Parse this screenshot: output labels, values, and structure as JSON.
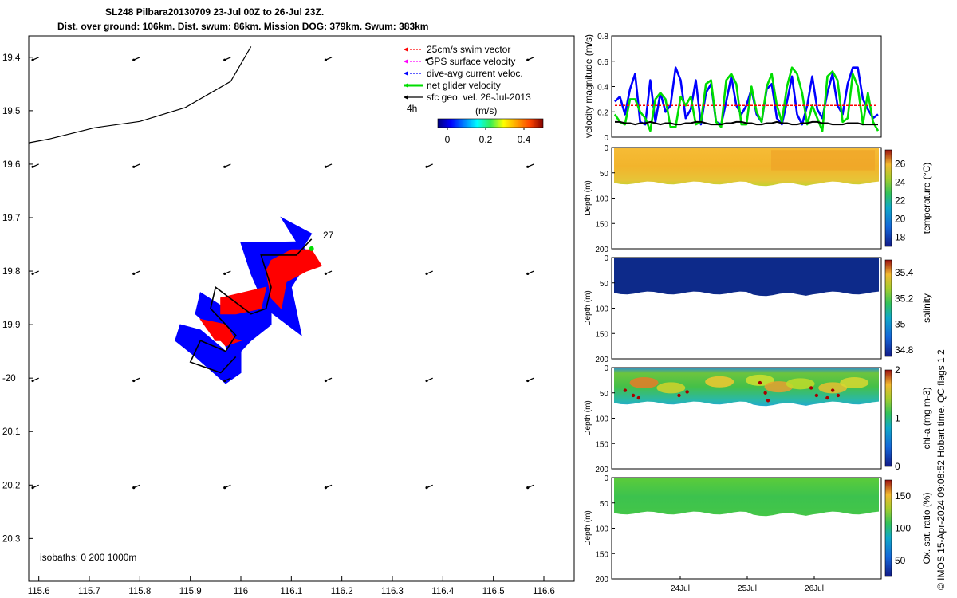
{
  "title": {
    "line1": "SL248 Pilbara20130709 23-Jul 00Z to 26-Jul 23Z.",
    "line2": "Dist. over ground: 106km. Dist. swum: 86km. Mission DOG: 379km. Swum: 383km"
  },
  "colors": {
    "swim_vector": "#ff0000",
    "gps_velocity": "#ff00ff",
    "current": "#0000ff",
    "net_glider": "#00dd00",
    "geo_vel": "#000000"
  },
  "chart_data": [
    {
      "type": "map",
      "xlim": [
        115.58,
        116.66
      ],
      "ylim": [
        -20.38,
        -19.36
      ],
      "xticks": [
        115.6,
        115.7,
        115.8,
        115.9,
        116.0,
        116.1,
        116.2,
        116.3,
        116.4,
        116.5,
        116.6
      ],
      "xtick_labels": [
        "115.6",
        "115.7",
        "115.8",
        "115.9",
        "116",
        "116.1",
        "116.2",
        "116.3",
        "116.4",
        "116.5",
        "116.6"
      ],
      "yticks": [
        -19.4,
        -19.5,
        -19.6,
        -19.7,
        -19.8,
        -19.9,
        -20.0,
        -20.1,
        -20.2,
        -20.3
      ],
      "ytick_labels": [
        "19.4",
        "19.5",
        "19.6",
        "19.7",
        "19.8",
        "19.9",
        "-20",
        "20.1",
        "20.2",
        "20.3"
      ],
      "legend": [
        {
          "label": "25cm/s swim vector",
          "color": "#ff0000",
          "style": "dotted"
        },
        {
          "label": "GPS surface velocity",
          "color": "#ff00ff",
          "style": "dotted"
        },
        {
          "label": "dive-avg current veloc.",
          "color": "#0000ff",
          "style": "dotted"
        },
        {
          "label": "net glider velocity",
          "color": "#00dd00",
          "style": "thick"
        },
        {
          "label": "sfc geo. vel. 26-Jul-2013",
          "color": "#000000",
          "style": "solid"
        }
      ],
      "time_step_label": "4h",
      "colorbar": {
        "unit": "(m/s)",
        "ticks": [
          "0",
          "0.2",
          "0.4"
        ],
        "range": [
          -0.05,
          0.5
        ]
      },
      "isobath_label": "isobaths: 0   200  1000m",
      "annotation": "27",
      "coastline": [
        [
          115.58,
          -19.56
        ],
        [
          115.62,
          -19.553
        ],
        [
          115.71,
          -19.532
        ],
        [
          115.8,
          -19.52
        ],
        [
          115.89,
          -19.494
        ],
        [
          115.98,
          -19.445
        ],
        [
          116.02,
          -19.38
        ]
      ],
      "glider_track": [
        [
          116.14,
          -19.74
        ],
        [
          116.11,
          -19.77
        ],
        [
          116.04,
          -19.77
        ],
        [
          116.06,
          -19.83
        ],
        [
          116.05,
          -19.87
        ],
        [
          116.02,
          -19.88
        ],
        [
          115.95,
          -19.83
        ],
        [
          115.94,
          -19.87
        ],
        [
          115.99,
          -19.92
        ],
        [
          115.97,
          -19.95
        ],
        [
          115.92,
          -19.93
        ],
        [
          115.9,
          -19.97
        ],
        [
          115.96,
          -19.99
        ],
        [
          115.99,
          -19.96
        ]
      ],
      "current_polygons": [
        [
          [
            116.11,
            -19.745
          ],
          [
            116.0,
            -19.747
          ],
          [
            116.02,
            -19.805
          ],
          [
            116.05,
            -19.87
          ],
          [
            116.12,
            -19.92
          ],
          [
            116.1,
            -19.83
          ],
          [
            116.14,
            -19.77
          ]
        ],
        [
          [
            116.06,
            -19.85
          ],
          [
            115.95,
            -19.88
          ],
          [
            115.98,
            -19.97
          ],
          [
            116.02,
            -19.93
          ],
          [
            116.06,
            -19.9
          ]
        ],
        [
          [
            116.08,
            -19.7
          ],
          [
            116.12,
            -19.76
          ],
          [
            116.14,
            -19.73
          ]
        ],
        [
          [
            115.88,
            -19.9
          ],
          [
            115.92,
            -19.91
          ],
          [
            115.97,
            -19.95
          ],
          [
            116.0,
            -19.95
          ],
          [
            116.0,
            -19.99
          ],
          [
            115.97,
            -20.01
          ],
          [
            115.91,
            -19.96
          ],
          [
            115.87,
            -19.93
          ]
        ],
        [
          [
            115.92,
            -19.84
          ],
          [
            115.97,
            -19.87
          ],
          [
            116.0,
            -19.92
          ],
          [
            115.97,
            -19.93
          ],
          [
            115.91,
            -19.88
          ]
        ]
      ],
      "swim_polygons": [
        [
          [
            116.06,
            -19.78
          ],
          [
            116.1,
            -19.76
          ],
          [
            116.14,
            -19.76
          ],
          [
            116.16,
            -19.79
          ],
          [
            116.13,
            -19.8
          ],
          [
            116.09,
            -19.82
          ],
          [
            116.08,
            -19.87
          ],
          [
            116.06,
            -19.85
          ],
          [
            116.05,
            -19.8
          ]
        ],
        [
          [
            115.96,
            -19.85
          ],
          [
            116.05,
            -19.83
          ],
          [
            116.04,
            -19.87
          ],
          [
            115.99,
            -19.88
          ],
          [
            115.96,
            -19.88
          ]
        ],
        [
          [
            115.92,
            -19.89
          ],
          [
            115.97,
            -19.9
          ],
          [
            115.99,
            -19.93
          ],
          [
            115.95,
            -19.93
          ]
        ],
        [
          [
            115.93,
            -19.9
          ],
          [
            115.96,
            -19.92
          ],
          [
            116.0,
            -19.93
          ],
          [
            115.97,
            -19.94
          ]
        ]
      ],
      "geo_vel_grid": {
        "lons": [
          115.6,
          115.8,
          115.98,
          116.18,
          116.38,
          116.58
        ],
        "lats": [
          -19.4,
          -19.6,
          -19.8,
          -20.0,
          -20.2
        ],
        "dlon": -0.012,
        "dlat": -0.005
      }
    },
    {
      "type": "line",
      "ylabel": "velocity magnitude (m/s)",
      "ylim": [
        0,
        0.8
      ],
      "yticks": [
        0,
        0.2,
        0.4,
        0.6,
        0.8
      ],
      "series": [
        {
          "name": "dive-avg current veloc.",
          "color": "#0000ff",
          "values": [
            0.28,
            0.32,
            0.18,
            0.38,
            0.5,
            0.12,
            0.1,
            0.45,
            0.12,
            0.35,
            0.2,
            0.25,
            0.55,
            0.45,
            0.15,
            0.22,
            0.45,
            0.1,
            0.35,
            0.42,
            0.12,
            0.1,
            0.28,
            0.48,
            0.25,
            0.18,
            0.25,
            0.38,
            0.18,
            0.12,
            0.38,
            0.42,
            0.15,
            0.1,
            0.28,
            0.48,
            0.18,
            0.1,
            0.25,
            0.48,
            0.22,
            0.15,
            0.35,
            0.5,
            0.25,
            0.18,
            0.42,
            0.55,
            0.55,
            0.3,
            0.22,
            0.15,
            0.18
          ]
        },
        {
          "name": "net glider velocity",
          "color": "#00dd00",
          "values": [
            0.18,
            0.12,
            0.1,
            0.3,
            0.3,
            0.2,
            0.15,
            0.05,
            0.3,
            0.35,
            0.3,
            0.08,
            0.08,
            0.32,
            0.25,
            0.32,
            0.1,
            0.12,
            0.42,
            0.45,
            0.12,
            0.08,
            0.45,
            0.5,
            0.42,
            0.1,
            0.1,
            0.4,
            0.2,
            0.12,
            0.4,
            0.5,
            0.25,
            0.12,
            0.4,
            0.55,
            0.5,
            0.35,
            0.1,
            0.25,
            0.15,
            0.05,
            0.48,
            0.52,
            0.45,
            0.12,
            0.15,
            0.5,
            0.4,
            0.1,
            0.35,
            0.12,
            0.05
          ]
        },
        {
          "name": "25cm/s swim vector",
          "color": "#ff0000",
          "values": [
            0.25,
            0.25,
            0.25,
            0.25,
            0.25,
            0.25,
            0.25,
            0.25,
            0.25,
            0.25,
            0.25,
            0.25,
            0.25,
            0.25,
            0.25,
            0.25,
            0.25,
            0.25,
            0.25,
            0.25,
            0.25,
            0.25,
            0.25,
            0.25,
            0.25,
            0.25,
            0.25,
            0.25,
            0.25,
            0.25,
            0.25,
            0.25,
            0.25,
            0.25,
            0.25,
            0.25,
            0.25,
            0.25,
            0.25,
            0.25,
            0.25,
            0.25,
            0.25,
            0.25,
            0.25,
            0.25,
            0.25,
            0.25,
            0.25,
            0.25,
            0.25,
            0.25,
            0.25
          ]
        },
        {
          "name": "sfc geo. vel. 26-Jul-2013",
          "color": "#000000",
          "values": [
            0.12,
            0.12,
            0.11,
            0.11,
            0.1,
            0.11,
            0.11,
            0.12,
            0.11,
            0.1,
            0.11,
            0.11,
            0.1,
            0.1,
            0.11,
            0.11,
            0.12,
            0.12,
            0.11,
            0.1,
            0.1,
            0.1,
            0.11,
            0.11,
            0.12,
            0.12,
            0.11,
            0.11,
            0.1,
            0.1,
            0.11,
            0.11,
            0.12,
            0.11,
            0.11,
            0.1,
            0.1,
            0.11,
            0.11,
            0.12,
            0.12,
            0.11,
            0.11,
            0.1,
            0.1,
            0.1,
            0.11,
            0.11,
            0.11,
            0.1,
            0.1,
            0.1,
            0.1
          ]
        }
      ]
    },
    {
      "type": "heatmap",
      "ylabel": "Depth (m)",
      "ylim": [
        0,
        200
      ],
      "yticks": [
        0,
        50,
        100,
        150,
        200
      ],
      "colorbar": {
        "label": "temperature (°C)",
        "ticks": [
          "18",
          "20",
          "22",
          "24",
          "26"
        ],
        "range": [
          17,
          27.5
        ]
      },
      "value_typical": 25.5
    },
    {
      "type": "heatmap",
      "ylabel": "Depth (m)",
      "ylim": [
        0,
        200
      ],
      "yticks": [
        0,
        50,
        100,
        150,
        200
      ],
      "colorbar": {
        "label": "salinity",
        "ticks": [
          "34.8",
          "35",
          "35.2",
          "35.4"
        ],
        "range": [
          34.75,
          35.5
        ]
      },
      "value_typical": 34.78
    },
    {
      "type": "heatmap",
      "ylabel": "Depth (m)",
      "ylim": [
        0,
        200
      ],
      "yticks": [
        0,
        50,
        100,
        150,
        200
      ],
      "colorbar": {
        "label": "chl-a (mg m-3)",
        "ticks": [
          "0",
          "1",
          "2"
        ],
        "range": [
          0,
          2
        ]
      },
      "value_typical": 0.8
    },
    {
      "type": "heatmap",
      "ylabel": "Depth (m)",
      "ylim": [
        0,
        200
      ],
      "yticks": [
        0,
        50,
        100,
        150,
        200
      ],
      "xtick_labels": [
        "24Jul",
        "25Jul",
        "26Jul"
      ],
      "colorbar": {
        "label": "Ox. sat. ratio (%)",
        "ticks": [
          "50",
          "100",
          "150"
        ],
        "range": [
          25,
          175
        ]
      },
      "value_typical": 120
    }
  ],
  "footer": "© IMOS 15-Apr-2024 09:08:52 Hobart time. QC flags 1  2"
}
